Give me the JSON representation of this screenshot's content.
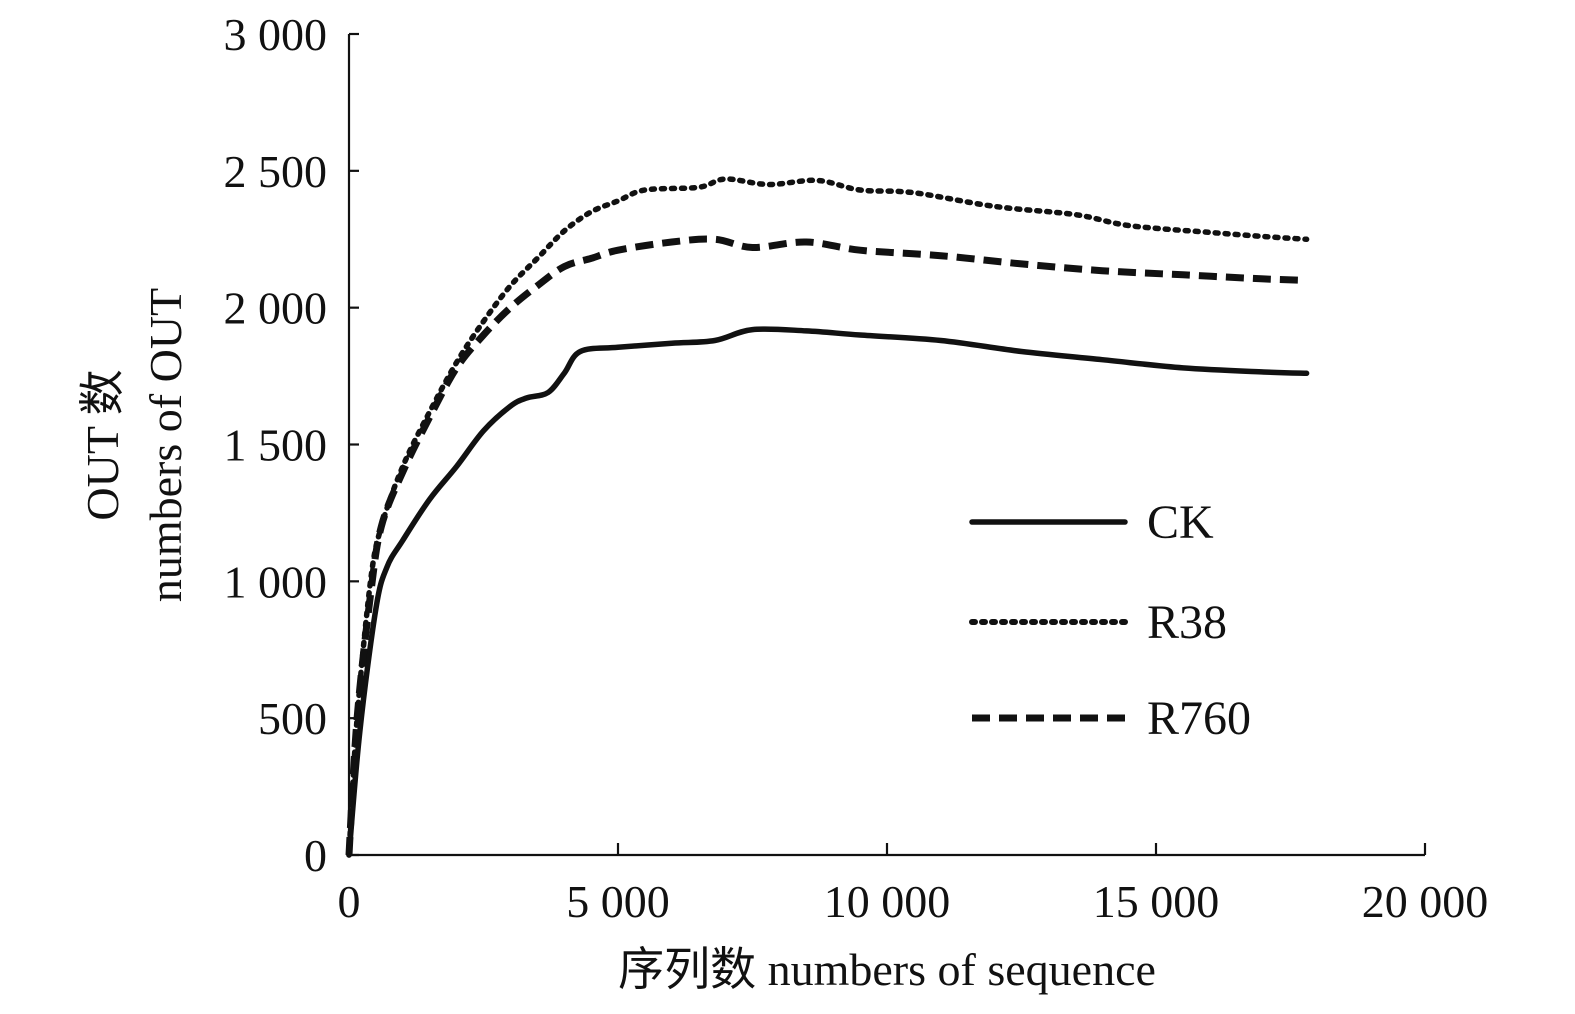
{
  "chart_data": {
    "type": "line",
    "title": "",
    "xlabel": "序列数 numbers of sequence",
    "ylabel_lines": [
      "OUT 数",
      "numbers of OUT"
    ],
    "xlim": [
      0,
      20000
    ],
    "ylim": [
      0,
      3000
    ],
    "x_ticks": [
      0,
      5000,
      10000,
      15000,
      20000
    ],
    "x_tick_labels": [
      "0",
      "5 000",
      "10 000",
      "15 000",
      "20 000"
    ],
    "y_ticks": [
      0,
      500,
      1000,
      1500,
      2000,
      2500,
      3000
    ],
    "y_tick_labels": [
      "0",
      "500",
      "1 000",
      "1 500",
      "2 000",
      "2 500",
      "3 000"
    ],
    "grid": false,
    "legend_position": "right",
    "series": [
      {
        "name": "CK",
        "style": "solid",
        "points": [
          [
            0,
            0
          ],
          [
            200,
            450
          ],
          [
            500,
            900
          ],
          [
            700,
            1050
          ],
          [
            1000,
            1150
          ],
          [
            1500,
            1300
          ],
          [
            2000,
            1420
          ],
          [
            2500,
            1550
          ],
          [
            3000,
            1640
          ],
          [
            3300,
            1670
          ],
          [
            3700,
            1690
          ],
          [
            4000,
            1760
          ],
          [
            4300,
            1840
          ],
          [
            5000,
            1855
          ],
          [
            6000,
            1870
          ],
          [
            6800,
            1880
          ],
          [
            7500,
            1920
          ],
          [
            8500,
            1915
          ],
          [
            9500,
            1900
          ],
          [
            11000,
            1880
          ],
          [
            12500,
            1840
          ],
          [
            14000,
            1810
          ],
          [
            15500,
            1780
          ],
          [
            17000,
            1765
          ],
          [
            17800,
            1760
          ]
        ]
      },
      {
        "name": "R38",
        "style": "dotted",
        "points": [
          [
            0,
            0
          ],
          [
            150,
            500
          ],
          [
            400,
            1000
          ],
          [
            600,
            1200
          ],
          [
            1000,
            1420
          ],
          [
            1500,
            1620
          ],
          [
            2000,
            1800
          ],
          [
            2500,
            1950
          ],
          [
            3000,
            2080
          ],
          [
            3500,
            2180
          ],
          [
            4000,
            2280
          ],
          [
            4500,
            2350
          ],
          [
            5000,
            2390
          ],
          [
            5500,
            2430
          ],
          [
            6500,
            2440
          ],
          [
            7000,
            2470
          ],
          [
            7800,
            2450
          ],
          [
            8700,
            2465
          ],
          [
            9500,
            2430
          ],
          [
            10500,
            2420
          ],
          [
            12000,
            2370
          ],
          [
            13500,
            2340
          ],
          [
            14500,
            2300
          ],
          [
            16000,
            2275
          ],
          [
            17000,
            2260
          ],
          [
            17800,
            2250
          ]
        ]
      },
      {
        "name": "R760",
        "style": "dashed",
        "points": [
          [
            0,
            0
          ],
          [
            150,
            500
          ],
          [
            400,
            950
          ],
          [
            600,
            1200
          ],
          [
            1000,
            1400
          ],
          [
            1500,
            1600
          ],
          [
            2000,
            1780
          ],
          [
            2500,
            1900
          ],
          [
            3000,
            2000
          ],
          [
            3500,
            2080
          ],
          [
            4000,
            2150
          ],
          [
            4500,
            2180
          ],
          [
            5000,
            2210
          ],
          [
            6000,
            2240
          ],
          [
            6800,
            2250
          ],
          [
            7500,
            2220
          ],
          [
            8500,
            2240
          ],
          [
            9500,
            2210
          ],
          [
            11000,
            2190
          ],
          [
            12500,
            2160
          ],
          [
            14000,
            2135
          ],
          [
            15500,
            2120
          ],
          [
            17000,
            2105
          ],
          [
            17800,
            2100
          ]
        ]
      }
    ]
  }
}
